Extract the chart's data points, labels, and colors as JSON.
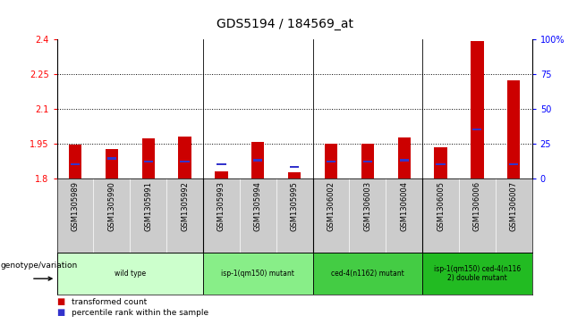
{
  "title": "GDS5194 / 184569_at",
  "samples": [
    "GSM1305989",
    "GSM1305990",
    "GSM1305991",
    "GSM1305992",
    "GSM1305993",
    "GSM1305994",
    "GSM1305995",
    "GSM1306002",
    "GSM1306003",
    "GSM1306004",
    "GSM1306005",
    "GSM1306006",
    "GSM1306007"
  ],
  "red_values": [
    1.945,
    1.925,
    1.97,
    1.98,
    1.83,
    1.955,
    1.825,
    1.95,
    1.95,
    1.975,
    1.935,
    2.39,
    2.22
  ],
  "blue_percentiles": [
    10,
    14,
    12,
    12,
    10,
    13,
    8,
    12,
    12,
    13,
    10,
    35,
    10
  ],
  "y_min": 1.8,
  "y_max": 2.4,
  "y_ticks_left": [
    1.8,
    1.95,
    2.1,
    2.25,
    2.4
  ],
  "y_ticks_right": [
    0,
    25,
    50,
    75,
    100
  ],
  "bar_color": "#cc0000",
  "blue_color": "#3333cc",
  "bg_plot": "#ffffff",
  "bg_sample_row": "#cccccc",
  "grid_lines": [
    1.95,
    2.1,
    2.25
  ],
  "group_boundaries": [
    3.5,
    6.5,
    9.5
  ],
  "genotype_groups": [
    {
      "label": "wild type",
      "start": 0,
      "end": 3,
      "color": "#ccffcc"
    },
    {
      "label": "isp-1(qm150) mutant",
      "start": 4,
      "end": 6,
      "color": "#88ee88"
    },
    {
      "label": "ced-4(n1162) mutant",
      "start": 7,
      "end": 9,
      "color": "#44cc44"
    },
    {
      "label": "isp-1(qm150) ced-4(n116\n2) double mutant",
      "start": 10,
      "end": 12,
      "color": "#22bb22"
    }
  ],
  "genotype_label": "genotype/variation",
  "legend_red": "transformed count",
  "legend_blue": "percentile rank within the sample",
  "title_fontsize": 10,
  "tick_fontsize": 7,
  "sample_fontsize": 6
}
